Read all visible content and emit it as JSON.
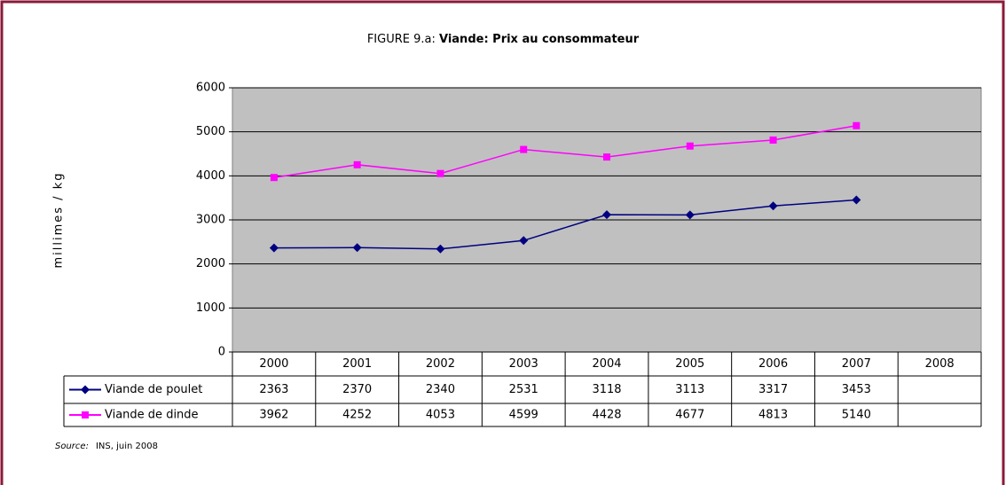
{
  "chart_data": {
    "type": "line",
    "figure_label": "FIGURE 9.a:",
    "title": "Viande: Prix au consommateur",
    "y_label": "millimes / kg",
    "categories": [
      "2000",
      "2001",
      "2002",
      "2003",
      "2004",
      "2005",
      "2006",
      "2007",
      "2008"
    ],
    "series": [
      {
        "name": "Viande de poulet",
        "color": "#000080",
        "marker": "diamond",
        "values": [
          2363,
          2370,
          2340,
          2531,
          3118,
          3113,
          3317,
          3453,
          null
        ]
      },
      {
        "name": "Viande de dinde",
        "color": "#ff00ff",
        "marker": "square",
        "values": [
          3962,
          4252,
          4053,
          4599,
          4428,
          4677,
          4813,
          5140,
          null
        ]
      }
    ],
    "ylim": [
      0,
      6000
    ],
    "yticks": [
      0,
      1000,
      2000,
      3000,
      4000,
      5000,
      6000
    ],
    "grid": true,
    "source_label": "Source:",
    "source": "INS, juin 2008"
  }
}
